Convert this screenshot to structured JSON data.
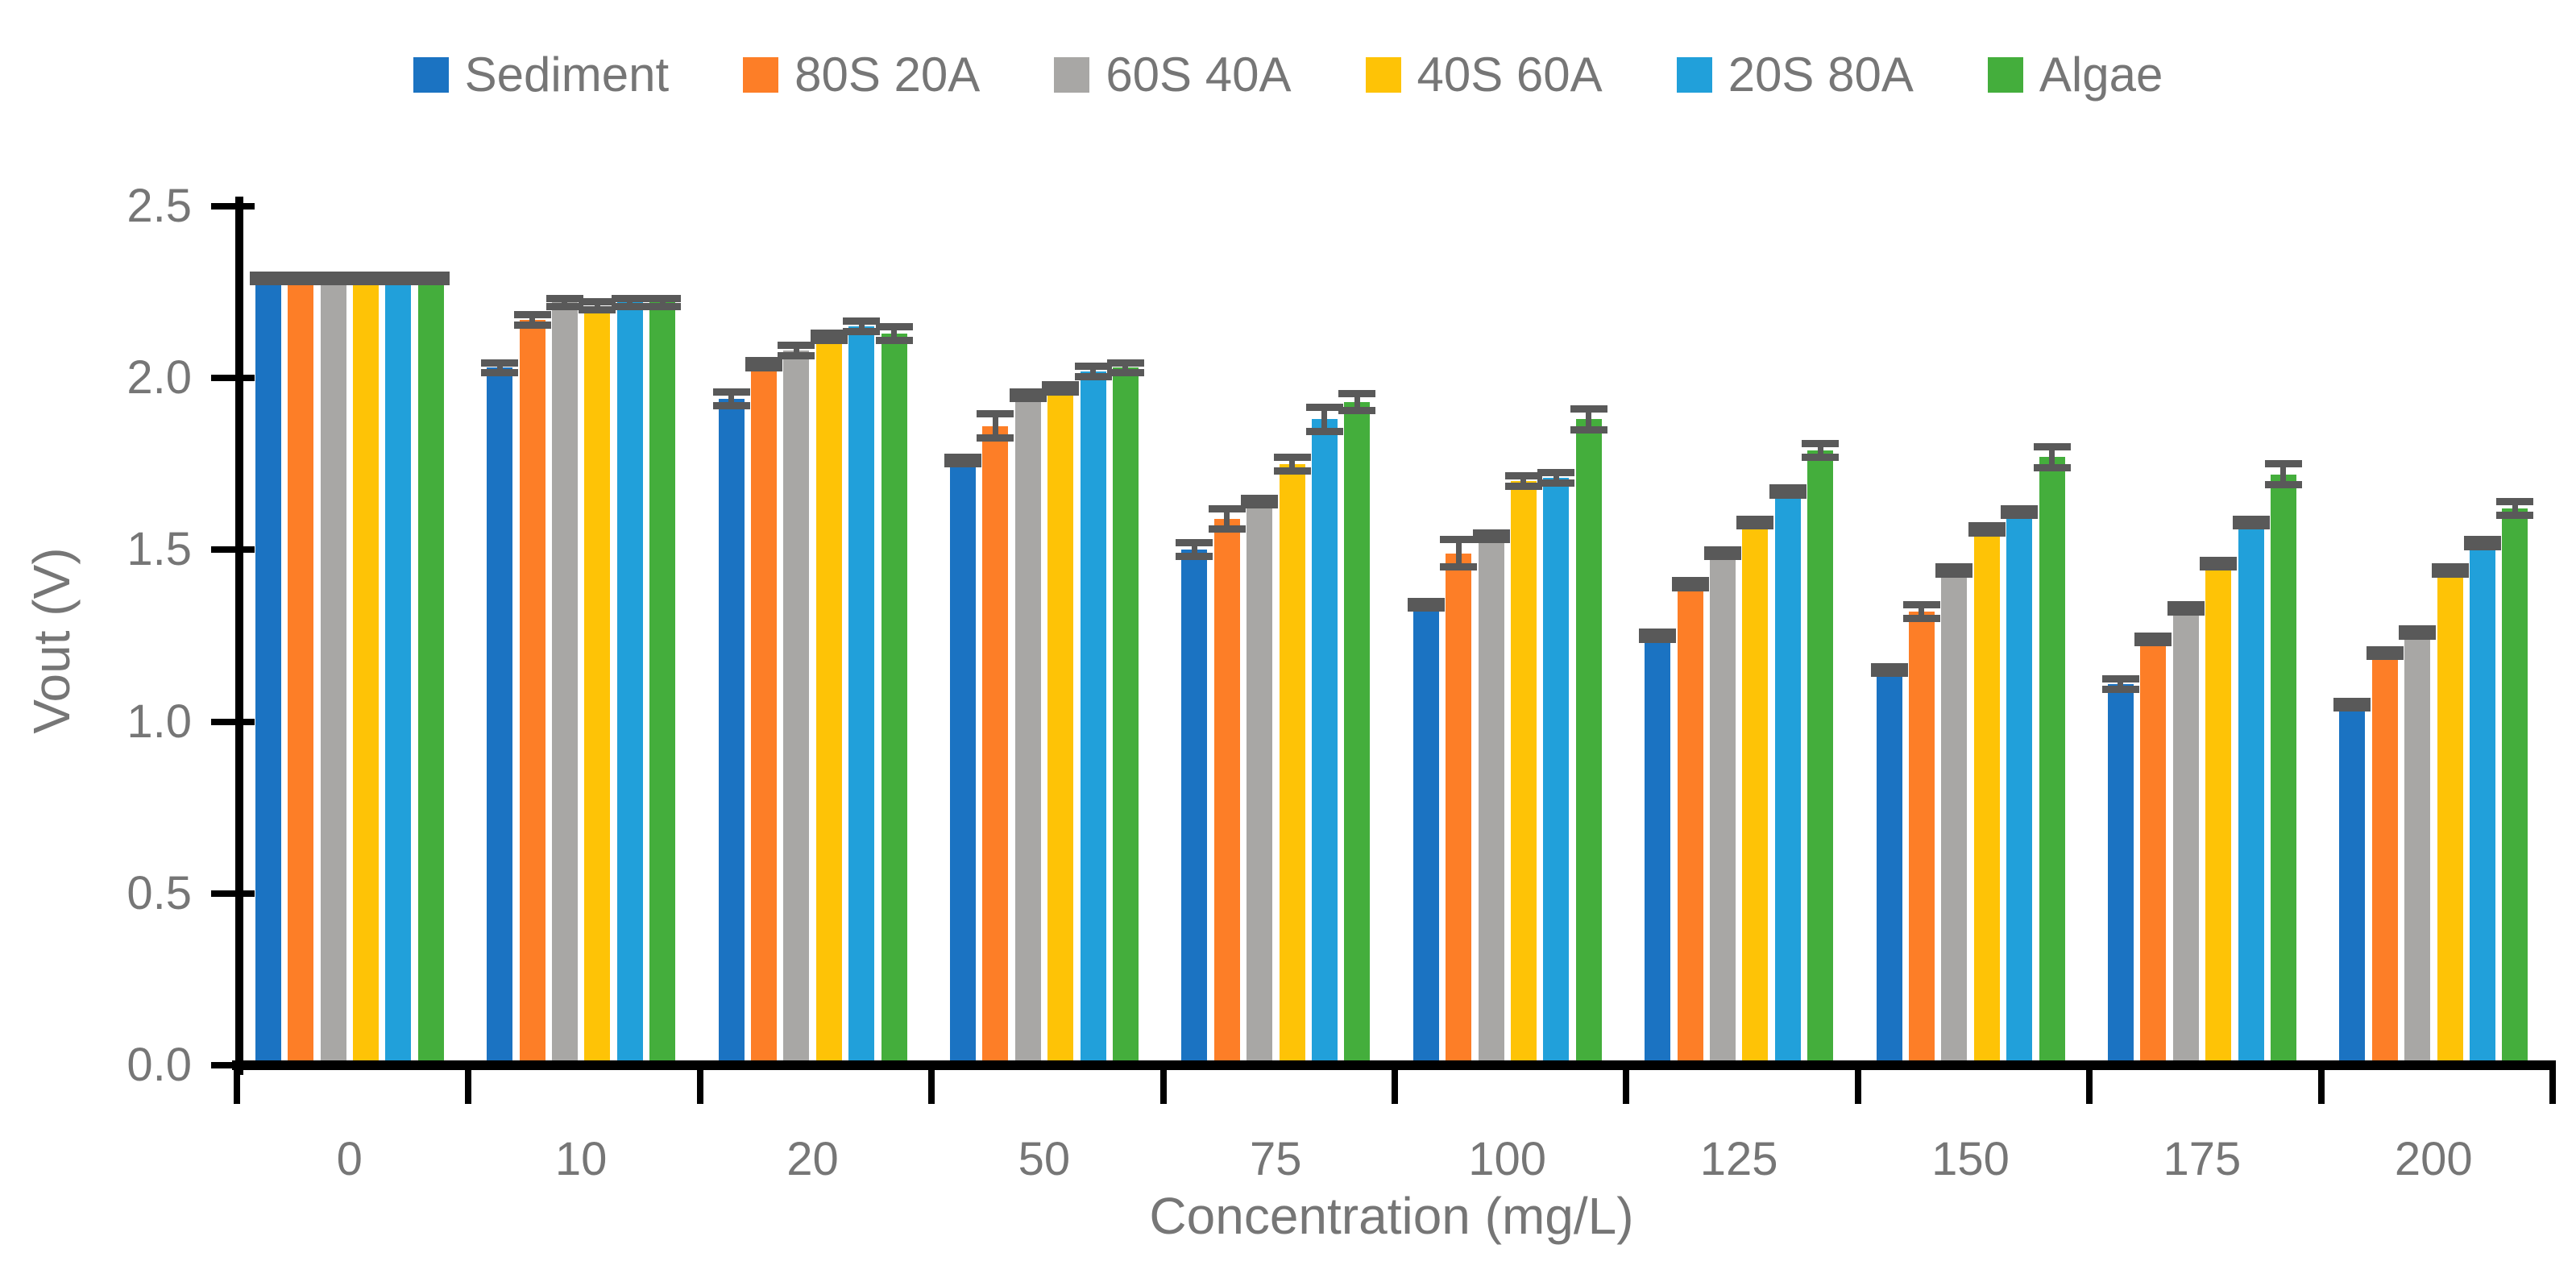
{
  "chart_data": {
    "type": "bar",
    "title": "",
    "xlabel": "Concentration (mg/L)",
    "ylabel": "Vout (V)",
    "categories": [
      "0",
      "10",
      "20",
      "50",
      "75",
      "100",
      "125",
      "150",
      "175",
      "200"
    ],
    "series": [
      {
        "name": "Sediment",
        "color": "#1b73c2",
        "values": [
          2.29,
          2.03,
          1.94,
          1.76,
          1.5,
          1.34,
          1.25,
          1.15,
          1.11,
          1.05
        ],
        "errors": [
          0.01,
          0.015,
          0.02,
          0.01,
          0.02,
          0.01,
          0.01,
          0.01,
          0.015,
          0.01
        ]
      },
      {
        "name": "80S 20A",
        "color": "#fd7e27",
        "values": [
          2.29,
          2.17,
          2.04,
          1.86,
          1.59,
          1.49,
          1.4,
          1.32,
          1.24,
          1.2
        ],
        "errors": [
          0.01,
          0.015,
          0.01,
          0.035,
          0.03,
          0.04,
          0.01,
          0.02,
          0.01,
          0.01
        ]
      },
      {
        "name": "60S 40A",
        "color": "#a8a7a5",
        "values": [
          2.29,
          2.22,
          2.08,
          1.95,
          1.64,
          1.54,
          1.49,
          1.44,
          1.33,
          1.26
        ],
        "errors": [
          0.01,
          0.012,
          0.015,
          0.01,
          0.01,
          0.01,
          0.01,
          0.01,
          0.01,
          0.01
        ]
      },
      {
        "name": "40S 60A",
        "color": "#fec306",
        "values": [
          2.29,
          2.21,
          2.12,
          1.97,
          1.75,
          1.7,
          1.58,
          1.56,
          1.46,
          1.44
        ],
        "errors": [
          0.01,
          0.012,
          0.01,
          0.01,
          0.02,
          0.015,
          0.01,
          0.01,
          0.01,
          0.01
        ]
      },
      {
        "name": "20S 80A",
        "color": "#21a0da",
        "values": [
          2.29,
          2.22,
          2.15,
          2.02,
          1.88,
          1.71,
          1.67,
          1.61,
          1.58,
          1.52
        ],
        "errors": [
          0.01,
          0.012,
          0.015,
          0.015,
          0.035,
          0.015,
          0.01,
          0.01,
          0.01,
          0.01
        ]
      },
      {
        "name": "Algae",
        "color": "#44ae3c",
        "values": [
          2.29,
          2.22,
          2.13,
          2.03,
          1.93,
          1.88,
          1.79,
          1.77,
          1.72,
          1.62
        ],
        "errors": [
          0.01,
          0.012,
          0.02,
          0.015,
          0.025,
          0.03,
          0.02,
          0.03,
          0.03,
          0.02
        ]
      }
    ],
    "y_ticks": [
      "0.0",
      "0.5",
      "1.0",
      "1.5",
      "2.0",
      "2.5"
    ],
    "ylim": [
      0,
      2.5
    ],
    "grid": false,
    "legend_position": "top",
    "error_bar_color": "#595959",
    "axis_color": "#000000",
    "text_color": "#767676"
  }
}
